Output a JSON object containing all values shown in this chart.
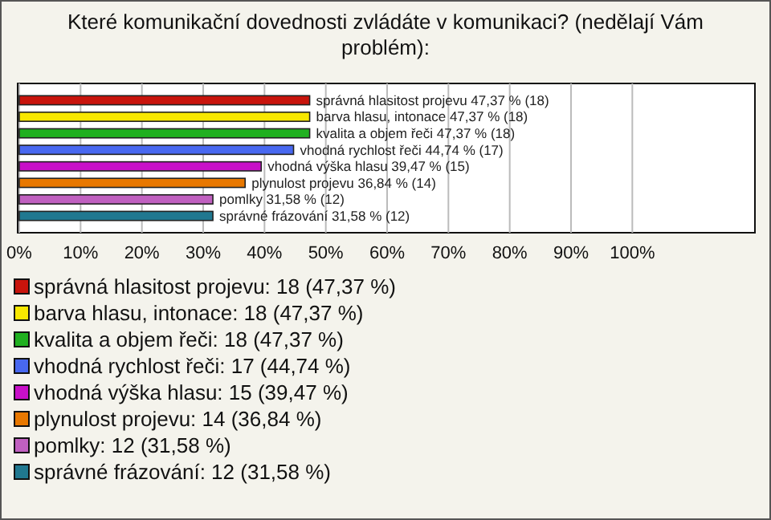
{
  "chart_data": {
    "type": "bar",
    "orientation": "horizontal",
    "title": "Které komunikační dovednosti zvládáte v komunikaci? (nedělají Vám problém):",
    "categories": [
      "správná hlasitost projevu",
      "barva hlasu, intonace",
      "kvalita a objem řeči",
      "vhodná rychlost řeči",
      "vhodná výška hlasu",
      "plynulost projevu",
      "pomlky",
      "správné frázování"
    ],
    "values": [
      47.37,
      47.37,
      47.37,
      44.74,
      39.47,
      36.84,
      31.58,
      31.58
    ],
    "value_labels": [
      "47,37 % (18)",
      "47,37 % (18)",
      "47,37 % (18)",
      "44,74 % (17)",
      "39,47 % (15)",
      "36,84 % (14)",
      "31,58 % (12)",
      "31,58 % (12)"
    ],
    "colors": [
      "#c8140c",
      "#f8e800",
      "#20b020",
      "#4868f0",
      "#c810c8",
      "#e87800",
      "#c060c0",
      "#207890"
    ],
    "xlim": [
      0,
      120
    ],
    "xticks": [
      {
        "value": 0,
        "label": "0%"
      },
      {
        "value": 10,
        "label": "10%"
      },
      {
        "value": 20,
        "label": "20%"
      },
      {
        "value": 30,
        "label": "30%"
      },
      {
        "value": 40,
        "label": "40%"
      },
      {
        "value": 50,
        "label": "50%"
      },
      {
        "value": 60,
        "label": "60%"
      },
      {
        "value": 70,
        "label": "70%"
      },
      {
        "value": 80,
        "label": "80%"
      },
      {
        "value": 90,
        "label": "90%"
      },
      {
        "value": 100,
        "label": "100%"
      }
    ],
    "grid": "x",
    "annotations": [
      "správná hlasitost projevu: 18 (47,37 %)",
      "barva hlasu, intonace: 18 (47,37 %)",
      "kvalita a objem řeči: 18 (47,37 %)",
      "vhodná rychlost řeči: 17 (44,74 %)",
      "vhodná výška hlasu: 15 (39,47 %)",
      "plynulost projevu: 14 (36,84 %)",
      "pomlky: 12 (31,58 %)",
      "správné frázování: 12 (31,58 %)"
    ]
  }
}
